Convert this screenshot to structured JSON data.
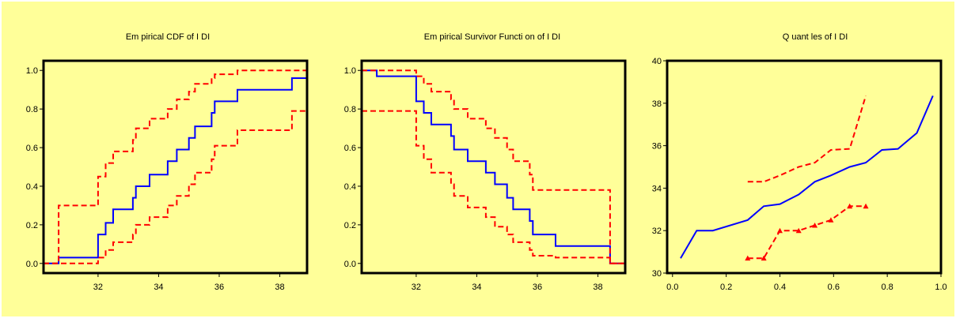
{
  "colors": {
    "background": "#FFFF99",
    "frame": "#000000",
    "estimate": "#0000FF",
    "bounds": "#FF0000"
  },
  "chart_data": [
    {
      "type": "line",
      "title": "Em pirical CDF of I DI",
      "xlim": [
        30.2,
        38.9
      ],
      "ylim": [
        -0.05,
        1.05
      ],
      "xticks": [
        32,
        34,
        36,
        38
      ],
      "xtick_labels": [
        "32",
        "34",
        "36",
        "38"
      ],
      "yticks": [
        0,
        0.2,
        0.4,
        0.6,
        0.8,
        1
      ],
      "ytick_labels": [
        "0.0",
        "0.2",
        "0.4",
        "0.6",
        "0.8",
        "1.0"
      ],
      "grid": false,
      "series": [
        {
          "role": "estimate",
          "step": true,
          "dash": false,
          "markers": false,
          "x": [
            30.2,
            30.7,
            32.0,
            32.25,
            32.5,
            33.15,
            33.25,
            33.7,
            34.3,
            34.6,
            35.0,
            35.2,
            35.75,
            35.85,
            36.6,
            38.4,
            38.9
          ],
          "y": [
            0.0,
            0.03,
            0.15,
            0.21,
            0.28,
            0.34,
            0.4,
            0.46,
            0.53,
            0.59,
            0.65,
            0.71,
            0.78,
            0.84,
            0.9,
            0.96,
            0.96
          ]
        },
        {
          "role": "upper",
          "step": true,
          "dash": true,
          "markers": false,
          "x": [
            30.2,
            30.7,
            32.0,
            32.25,
            32.5,
            33.15,
            33.25,
            33.7,
            34.3,
            34.6,
            35.0,
            35.2,
            35.75,
            35.85,
            36.6,
            38.4,
            38.9
          ],
          "y": [
            0.0,
            0.3,
            0.45,
            0.52,
            0.58,
            0.64,
            0.7,
            0.75,
            0.8,
            0.85,
            0.89,
            0.93,
            0.96,
            0.98,
            1.0,
            1.0,
            1.0
          ]
        },
        {
          "role": "lower",
          "step": true,
          "dash": true,
          "markers": false,
          "x": [
            30.2,
            30.7,
            32.0,
            32.25,
            32.5,
            33.15,
            33.25,
            33.7,
            34.3,
            34.6,
            35.0,
            35.2,
            35.75,
            35.85,
            36.6,
            38.4,
            38.9
          ],
          "y": [
            0.0,
            0.0,
            0.03,
            0.07,
            0.11,
            0.15,
            0.2,
            0.24,
            0.3,
            0.35,
            0.41,
            0.47,
            0.54,
            0.61,
            0.69,
            0.79,
            0.79
          ]
        }
      ]
    },
    {
      "type": "line",
      "title": "Em pirical Survivor Functi on of I DI",
      "xlim": [
        30.2,
        38.9
      ],
      "ylim": [
        -0.05,
        1.05
      ],
      "xticks": [
        32,
        34,
        36,
        38
      ],
      "xtick_labels": [
        "32",
        "34",
        "36",
        "38"
      ],
      "yticks": [
        0,
        0.2,
        0.4,
        0.6,
        0.8,
        1
      ],
      "ytick_labels": [
        "0.0",
        "0.2",
        "0.4",
        "0.6",
        "0.8",
        "1.0"
      ],
      "grid": false,
      "series": [
        {
          "role": "estimate",
          "step": true,
          "dash": false,
          "markers": false,
          "x": [
            30.2,
            30.7,
            32.0,
            32.25,
            32.5,
            33.15,
            33.25,
            33.7,
            34.3,
            34.6,
            35.0,
            35.2,
            35.75,
            35.85,
            36.6,
            38.4,
            38.9
          ],
          "y": [
            1.0,
            0.97,
            0.84,
            0.78,
            0.72,
            0.66,
            0.59,
            0.53,
            0.47,
            0.41,
            0.34,
            0.28,
            0.22,
            0.15,
            0.09,
            0.0,
            0.0
          ]
        },
        {
          "role": "upper",
          "step": true,
          "dash": true,
          "markers": false,
          "x": [
            30.2,
            30.7,
            32.0,
            32.25,
            32.5,
            33.15,
            33.25,
            33.7,
            34.3,
            34.6,
            35.0,
            35.2,
            35.75,
            35.85,
            36.6,
            38.4,
            38.9
          ],
          "y": [
            1.0,
            1.0,
            0.97,
            0.93,
            0.89,
            0.85,
            0.8,
            0.75,
            0.7,
            0.65,
            0.59,
            0.53,
            0.46,
            0.38,
            0.38,
            0.0,
            0.0
          ]
        },
        {
          "role": "lower",
          "step": true,
          "dash": true,
          "markers": false,
          "x": [
            30.2,
            30.7,
            32.0,
            32.25,
            32.5,
            33.15,
            33.25,
            33.7,
            34.3,
            34.6,
            35.0,
            35.2,
            35.75,
            35.85,
            36.6,
            38.4,
            38.9
          ],
          "y": [
            0.79,
            0.79,
            0.61,
            0.54,
            0.47,
            0.41,
            0.35,
            0.29,
            0.24,
            0.19,
            0.15,
            0.11,
            0.07,
            0.04,
            0.03,
            0.0,
            0.0
          ]
        }
      ]
    },
    {
      "type": "line",
      "title": "Q uant les of I DI",
      "xlim": [
        -0.02,
        1.0
      ],
      "ylim": [
        30,
        40
      ],
      "xticks": [
        0,
        0.2,
        0.4,
        0.6,
        0.8,
        1
      ],
      "xtick_labels": [
        "0.0",
        "0.2",
        "0.4",
        "0.6",
        "0.8",
        "1.0"
      ],
      "yticks": [
        30,
        32,
        34,
        36,
        38,
        40
      ],
      "ytick_labels": [
        "30",
        "32",
        "34",
        "36",
        "38",
        "40"
      ],
      "grid": false,
      "series": [
        {
          "role": "estimate",
          "step": false,
          "dash": false,
          "markers": false,
          "x": [
            0.03,
            0.09,
            0.15,
            0.28,
            0.34,
            0.4,
            0.47,
            0.53,
            0.59,
            0.66,
            0.72,
            0.78,
            0.84,
            0.91,
            0.97
          ],
          "y": [
            30.7,
            32.0,
            32.0,
            32.5,
            33.15,
            33.25,
            33.7,
            34.3,
            34.6,
            35.0,
            35.2,
            35.8,
            35.85,
            36.6,
            38.35
          ]
        },
        {
          "role": "upper",
          "step": false,
          "dash": true,
          "markers": false,
          "x": [
            0.28,
            0.34,
            0.4,
            0.47,
            0.53,
            0.59,
            0.66,
            0.72
          ],
          "y": [
            34.3,
            34.3,
            34.6,
            35.0,
            35.2,
            35.8,
            35.85,
            38.35
          ]
        },
        {
          "role": "lower",
          "step": false,
          "dash": true,
          "markers": true,
          "x": [
            0.28,
            0.34,
            0.4,
            0.47,
            0.53,
            0.59,
            0.66,
            0.72
          ],
          "y": [
            30.7,
            30.7,
            32.0,
            32.0,
            32.25,
            32.5,
            33.15,
            33.15
          ]
        }
      ]
    }
  ]
}
